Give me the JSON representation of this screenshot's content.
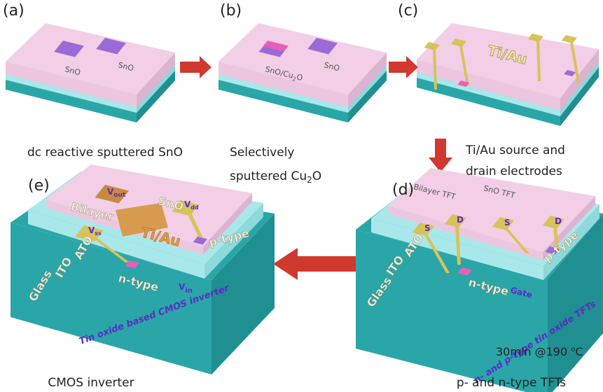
{
  "panels": {
    "a": {
      "label": "(a)",
      "film_labels": [
        "SnO",
        "SnO"
      ],
      "caption": "dc reactive sputtered SnO"
    },
    "b": {
      "label": "(b)",
      "film_labels": [
        {
          "base": "SnO/Cu",
          "sub": "2",
          "tail": "O"
        },
        "SnO"
      ],
      "caption": [
        "Selectively",
        {
          "base": "sputtered Cu",
          "sub": "2",
          "tail": "O"
        }
      ]
    },
    "c": {
      "label": "(c)",
      "electrode_label": "Ti/Au",
      "caption": [
        "Ti/Au source and",
        "drain electrodes"
      ]
    },
    "d": {
      "label": "(d)",
      "device_labels": [
        "Bilayer TFT",
        "SnO TFT"
      ],
      "contacts": [
        "S",
        "D",
        "S",
        "D"
      ],
      "layers": [
        "ATO",
        "ITO",
        "Glass"
      ],
      "types": [
        "n-type",
        "p-type"
      ],
      "gate": "Gate",
      "side_text": "n- and p-type tin oxide TFTs",
      "anneal": {
        "base": "30min @190 ",
        "sup": "o",
        "tail": "C"
      },
      "caption": "p- and n-type TFTs"
    },
    "e": {
      "label": "(e)",
      "vout": {
        "base": "V",
        "sub": "out"
      },
      "device_labels": [
        "Bilayer",
        "SnO"
      ],
      "vss": {
        "base": "V",
        "sub": "ss"
      },
      "vdd": {
        "base": "V",
        "sub": "dd"
      },
      "electrode_label": "Ti/Au",
      "layers": [
        "ATO",
        "ITO",
        "Glass"
      ],
      "types": [
        "n-type",
        "p-type"
      ],
      "vin": {
        "base": "V",
        "sub": "in"
      },
      "side_text": "Tin oxide based CMOS inverter",
      "caption": "CMOS inverter"
    }
  }
}
